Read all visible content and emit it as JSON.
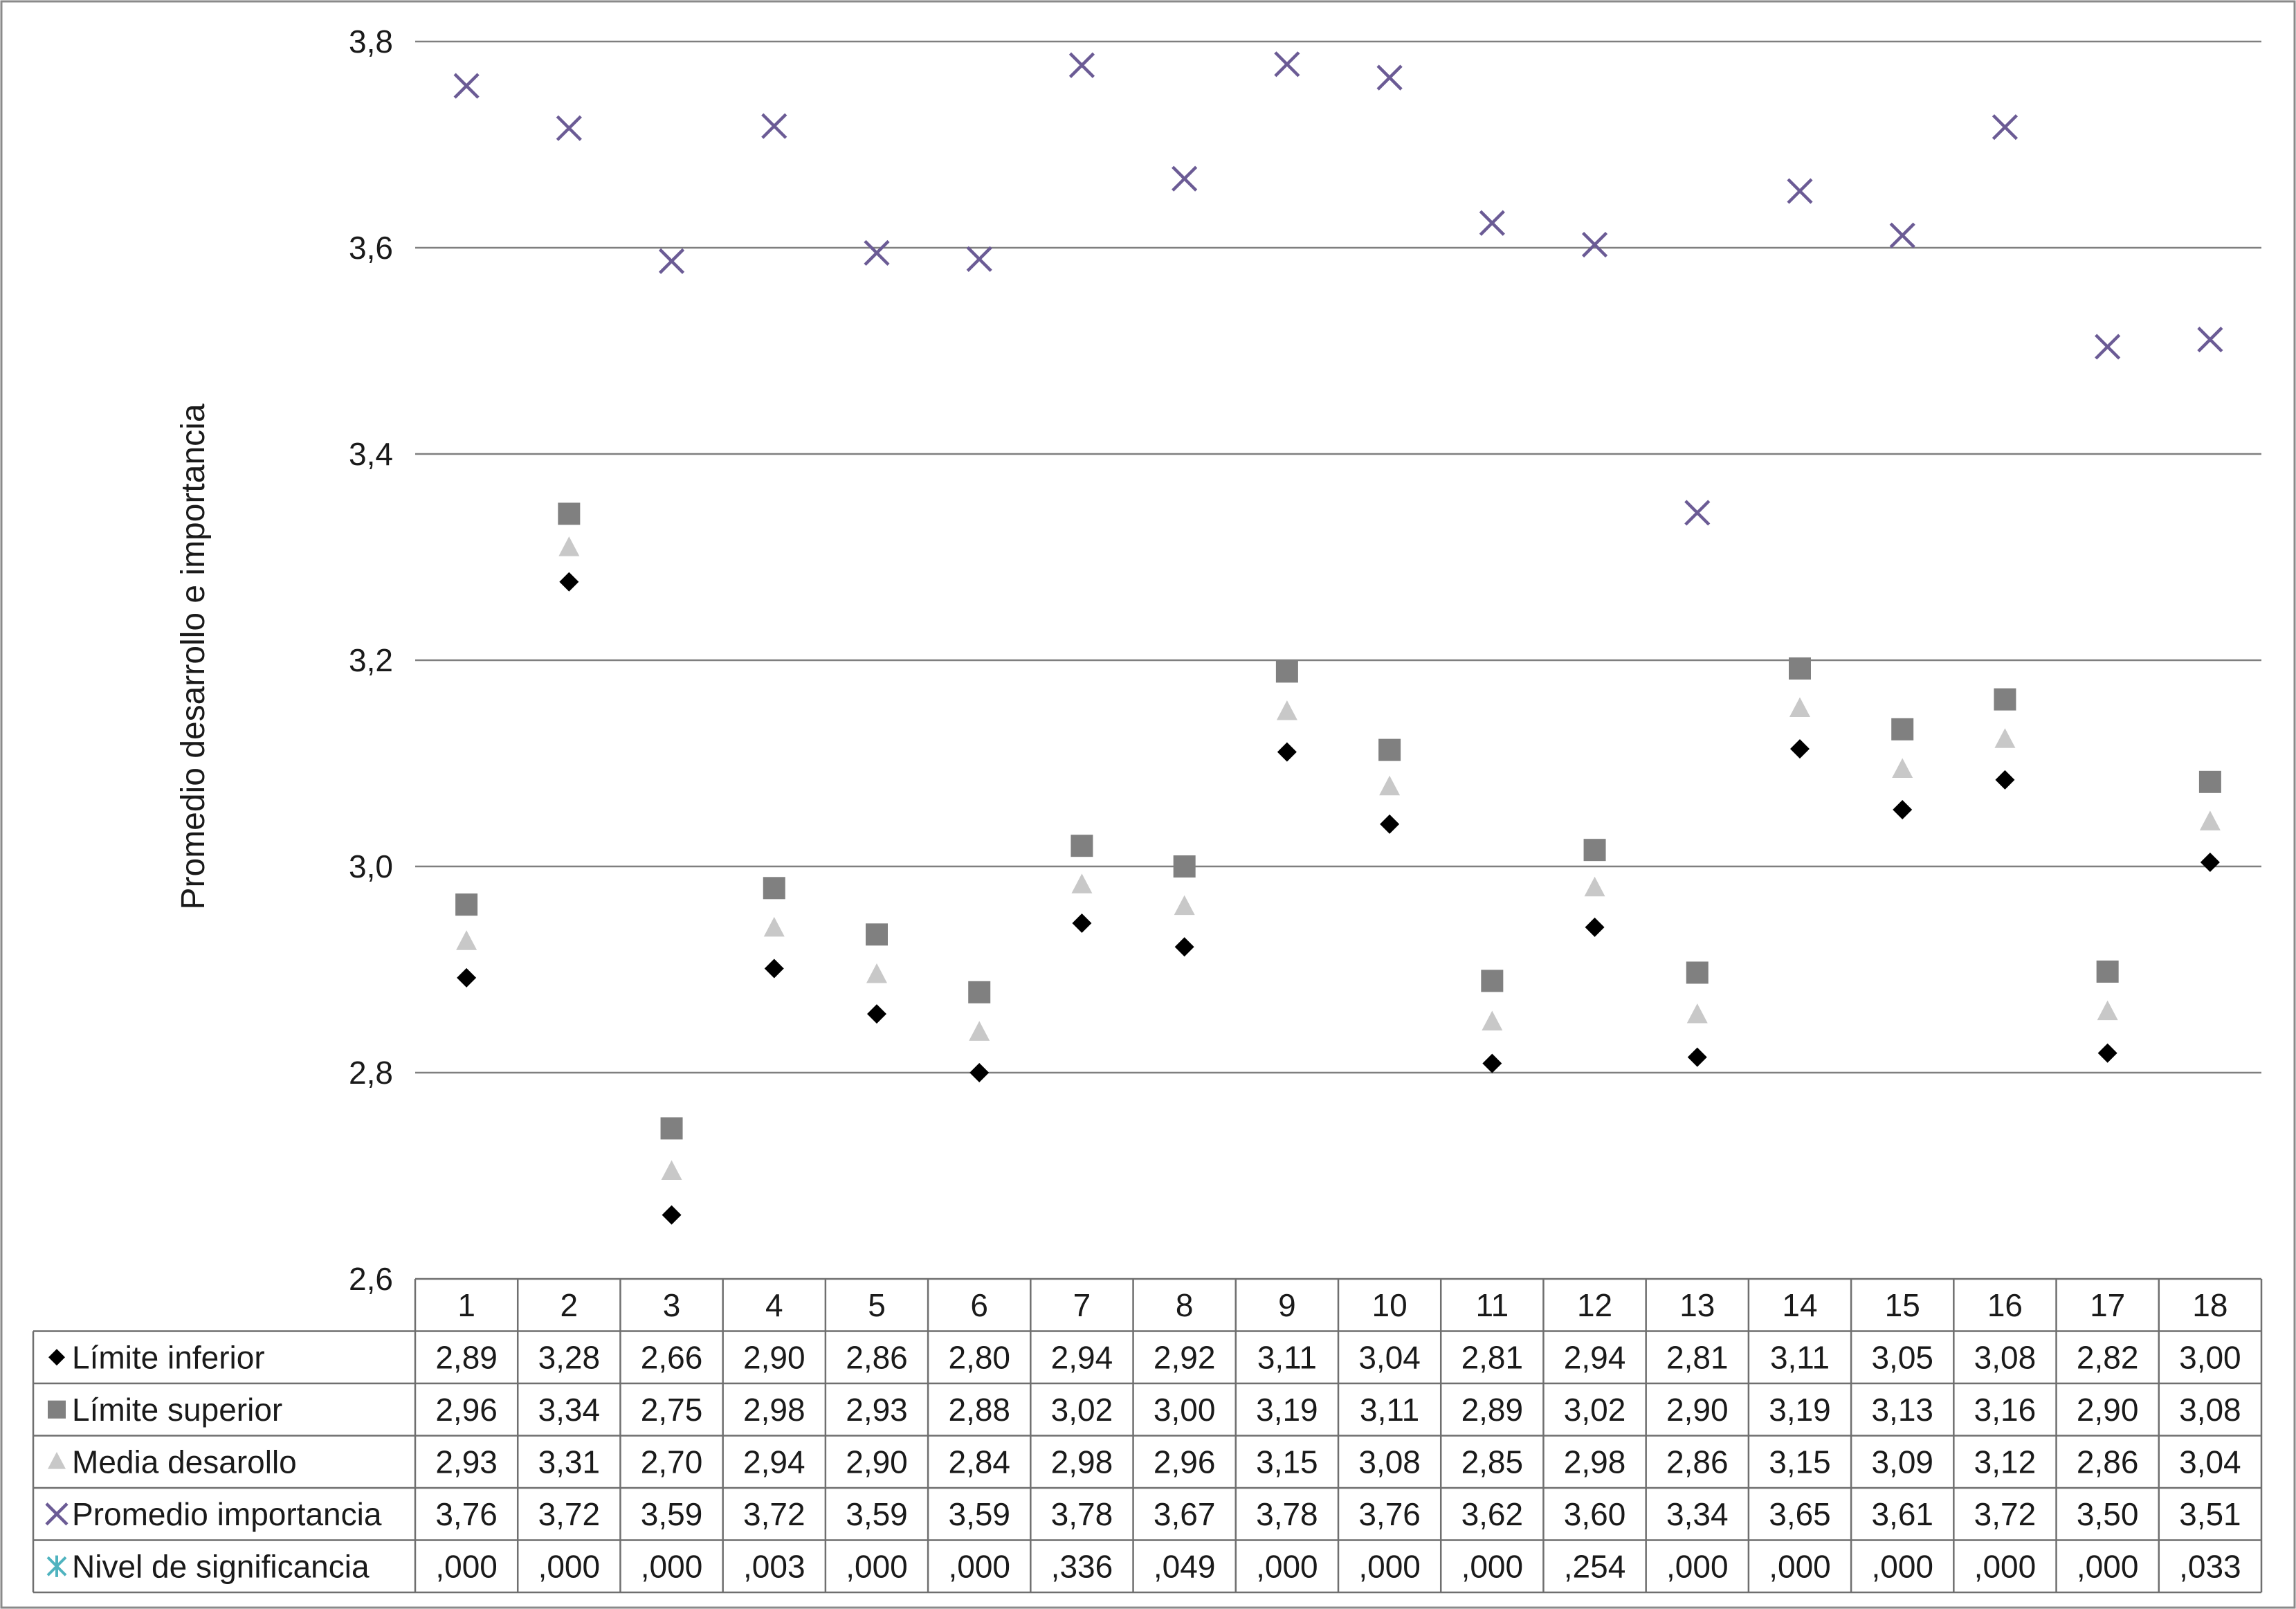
{
  "chart_data": {
    "type": "scatter",
    "ylabel": "Promedio desarrollo e importancia",
    "ylim": [
      2.6,
      3.8
    ],
    "yticks": [
      "2,6",
      "2,8",
      "3,0",
      "3,2",
      "3,4",
      "3,6",
      "3,8"
    ],
    "ytick_values": [
      2.6,
      2.8,
      3.0,
      3.2,
      3.4,
      3.6,
      3.8
    ],
    "grid": true,
    "legend": "data-table",
    "categories": [
      "1",
      "2",
      "3",
      "4",
      "5",
      "6",
      "7",
      "8",
      "9",
      "10",
      "11",
      "12",
      "13",
      "14",
      "15",
      "16",
      "17",
      "18"
    ],
    "series": [
      {
        "name": "Límite inferior",
        "marker": "diamond",
        "color": "#000000",
        "plotted": true,
        "values": [
          2.892,
          3.276,
          2.662,
          2.901,
          2.857,
          2.8,
          2.945,
          2.922,
          3.111,
          3.041,
          2.809,
          2.941,
          2.815,
          3.114,
          3.055,
          3.084,
          2.819,
          3.004
        ],
        "labels": [
          "2,89",
          "3,28",
          "2,66",
          "2,90",
          "2,86",
          "2,80",
          "2,94",
          "2,92",
          "3,11",
          "3,04",
          "2,81",
          "2,94",
          "2,81",
          "3,11",
          "3,05",
          "3,08",
          "2,82",
          "3,00"
        ]
      },
      {
        "name": "Límite superior",
        "marker": "square",
        "color": "#808080",
        "plotted": true,
        "values": [
          2.963,
          3.342,
          2.746,
          2.979,
          2.934,
          2.878,
          3.02,
          3.0,
          3.189,
          3.113,
          2.889,
          3.016,
          2.897,
          3.192,
          3.133,
          3.162,
          2.898,
          3.082
        ],
        "labels": [
          "2,96",
          "3,34",
          "2,75",
          "2,98",
          "2,93",
          "2,88",
          "3,02",
          "3,00",
          "3,19",
          "3,11",
          "2,89",
          "3,02",
          "2,90",
          "3,19",
          "3,13",
          "3,16",
          "2,90",
          "3,08"
        ]
      },
      {
        "name": "Media desarollo",
        "marker": "triangle",
        "color": "#c8c8c8",
        "plotted": true,
        "values": [
          2.927,
          3.309,
          2.704,
          2.94,
          2.895,
          2.839,
          2.982,
          2.961,
          3.15,
          3.077,
          2.849,
          2.979,
          2.856,
          3.153,
          3.094,
          3.123,
          2.859,
          3.043
        ],
        "labels": [
          "2,93",
          "3,31",
          "2,70",
          "2,94",
          "2,90",
          "2,84",
          "2,98",
          "2,96",
          "3,15",
          "3,08",
          "2,85",
          "2,98",
          "2,86",
          "3,15",
          "3,09",
          "3,12",
          "2,86",
          "3,04"
        ]
      },
      {
        "name": "Promedio importancia",
        "marker": "x",
        "color": "#6b5b95",
        "plotted": true,
        "values": [
          3.757,
          3.716,
          3.587,
          3.718,
          3.595,
          3.589,
          3.777,
          3.667,
          3.778,
          3.765,
          3.624,
          3.603,
          3.343,
          3.655,
          3.612,
          3.717,
          3.504,
          3.511
        ],
        "labels": [
          "3,76",
          "3,72",
          "3,59",
          "3,72",
          "3,59",
          "3,59",
          "3,78",
          "3,67",
          "3,78",
          "3,76",
          "3,62",
          "3,60",
          "3,34",
          "3,65",
          "3,61",
          "3,72",
          "3,50",
          "3,51"
        ]
      },
      {
        "name": "Nivel de significancia",
        "marker": "asterisk",
        "color": "#4fb3bf",
        "plotted": false,
        "values": [
          0.0,
          0.0,
          0.0,
          0.003,
          0.0,
          0.0,
          0.336,
          0.049,
          0.0,
          0.0,
          0.0,
          0.254,
          0.0,
          0.0,
          0.0,
          0.0,
          0.0,
          0.033
        ],
        "labels": [
          ",000",
          ",000",
          ",000",
          ",003",
          ",000",
          ",000",
          ",336",
          ",049",
          ",000",
          ",000",
          ",000",
          ",254",
          ",000",
          ",000",
          ",000",
          ",000",
          ",000",
          ",033"
        ]
      }
    ]
  }
}
